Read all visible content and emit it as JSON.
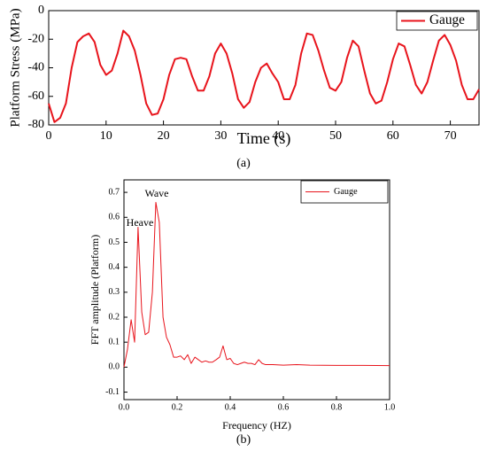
{
  "chart_data": [
    {
      "type": "line",
      "x_label": "Time (s)",
      "y_label": "Platform Stress (MPa)",
      "caption": "(a)",
      "xlim": [
        0,
        75
      ],
      "xticks": [
        0,
        10,
        20,
        30,
        40,
        50,
        60,
        70
      ],
      "ylim": [
        -80,
        0
      ],
      "yticks": [
        0,
        -20,
        -40,
        -60,
        -80
      ],
      "legend": "upper right",
      "x": [
        0,
        1,
        2,
        3,
        4,
        5,
        6,
        7,
        8,
        9,
        10,
        11,
        12,
        13,
        14,
        15,
        16,
        17,
        18,
        19,
        20,
        21,
        22,
        23,
        24,
        25,
        26,
        27,
        28,
        29,
        30,
        31,
        32,
        33,
        34,
        35,
        36,
        37,
        38,
        39,
        40,
        41,
        42,
        43,
        44,
        45,
        46,
        47,
        48,
        49,
        50,
        51,
        52,
        53,
        54,
        55,
        56,
        57,
        58,
        59,
        60,
        61,
        62,
        63,
        64,
        65,
        66,
        67,
        68,
        69,
        70,
        71,
        72,
        73,
        74,
        75
      ],
      "series": [
        {
          "name": "Gauge",
          "color": "#e8141c",
          "values": [
            -65,
            -78,
            -75,
            -65,
            -40,
            -22,
            -18,
            -16,
            -22,
            -38,
            -45,
            -42,
            -30,
            -14,
            -18,
            -28,
            -45,
            -65,
            -73,
            -72,
            -62,
            -45,
            -34,
            -33,
            -34,
            -46,
            -56,
            -56,
            -46,
            -30,
            -23,
            -30,
            -44,
            -62,
            -68,
            -64,
            -50,
            -40,
            -37,
            -44,
            -50,
            -62,
            -62,
            -52,
            -30,
            -16,
            -17,
            -28,
            -42,
            -54,
            -56,
            -50,
            -33,
            -21,
            -25,
            -42,
            -58,
            -65,
            -63,
            -50,
            -34,
            -23,
            -25,
            -38,
            -52,
            -58,
            -50,
            -35,
            -21,
            -17,
            -24,
            -35,
            -52,
            -62,
            -62,
            -55
          ]
        }
      ]
    },
    {
      "type": "line",
      "x_label": "Frequency (HZ)",
      "y_label": "FFT amplitude (Platform)",
      "caption": "(b)",
      "annotations": [
        "Heave",
        "Wave"
      ],
      "xlim": [
        0,
        1
      ],
      "xticks": [
        {
          "value": 0,
          "label": "0.0"
        },
        0.2,
        0.4,
        0.6,
        0.8,
        {
          "value": 1,
          "label": "1.0"
        }
      ],
      "ylim": [
        -0.13,
        0.75
      ],
      "yticks": [
        -0.1,
        {
          "value": 0,
          "label": "0.0"
        },
        0.1,
        0.2,
        0.3,
        0.4,
        0.5,
        0.6,
        0.7
      ],
      "legend": "upper right",
      "x": [
        0,
        0.013,
        0.027,
        0.04,
        0.053,
        0.067,
        0.08,
        0.093,
        0.107,
        0.12,
        0.133,
        0.147,
        0.16,
        0.173,
        0.187,
        0.2,
        0.213,
        0.227,
        0.24,
        0.253,
        0.267,
        0.28,
        0.293,
        0.307,
        0.32,
        0.333,
        0.347,
        0.36,
        0.373,
        0.387,
        0.4,
        0.413,
        0.427,
        0.44,
        0.453,
        0.467,
        0.48,
        0.493,
        0.507,
        0.52,
        0.533,
        0.56,
        0.6,
        0.65,
        0.7,
        0.8,
        0.9,
        1
      ],
      "series": [
        {
          "name": "Gauge",
          "color": "#e8141c",
          "values": [
            0,
            0.07,
            0.19,
            0.1,
            0.56,
            0.22,
            0.13,
            0.14,
            0.3,
            0.66,
            0.58,
            0.2,
            0.12,
            0.09,
            0.04,
            0.04,
            0.045,
            0.03,
            0.05,
            0.015,
            0.04,
            0.03,
            0.02,
            0.025,
            0.02,
            0.02,
            0.03,
            0.04,
            0.085,
            0.03,
            0.035,
            0.015,
            0.01,
            0.015,
            0.02,
            0.015,
            0.015,
            0.01,
            0.03,
            0.015,
            0.01,
            0.01,
            0.008,
            0.01,
            0.008,
            0.007,
            0.007,
            0.006
          ]
        }
      ]
    }
  ]
}
